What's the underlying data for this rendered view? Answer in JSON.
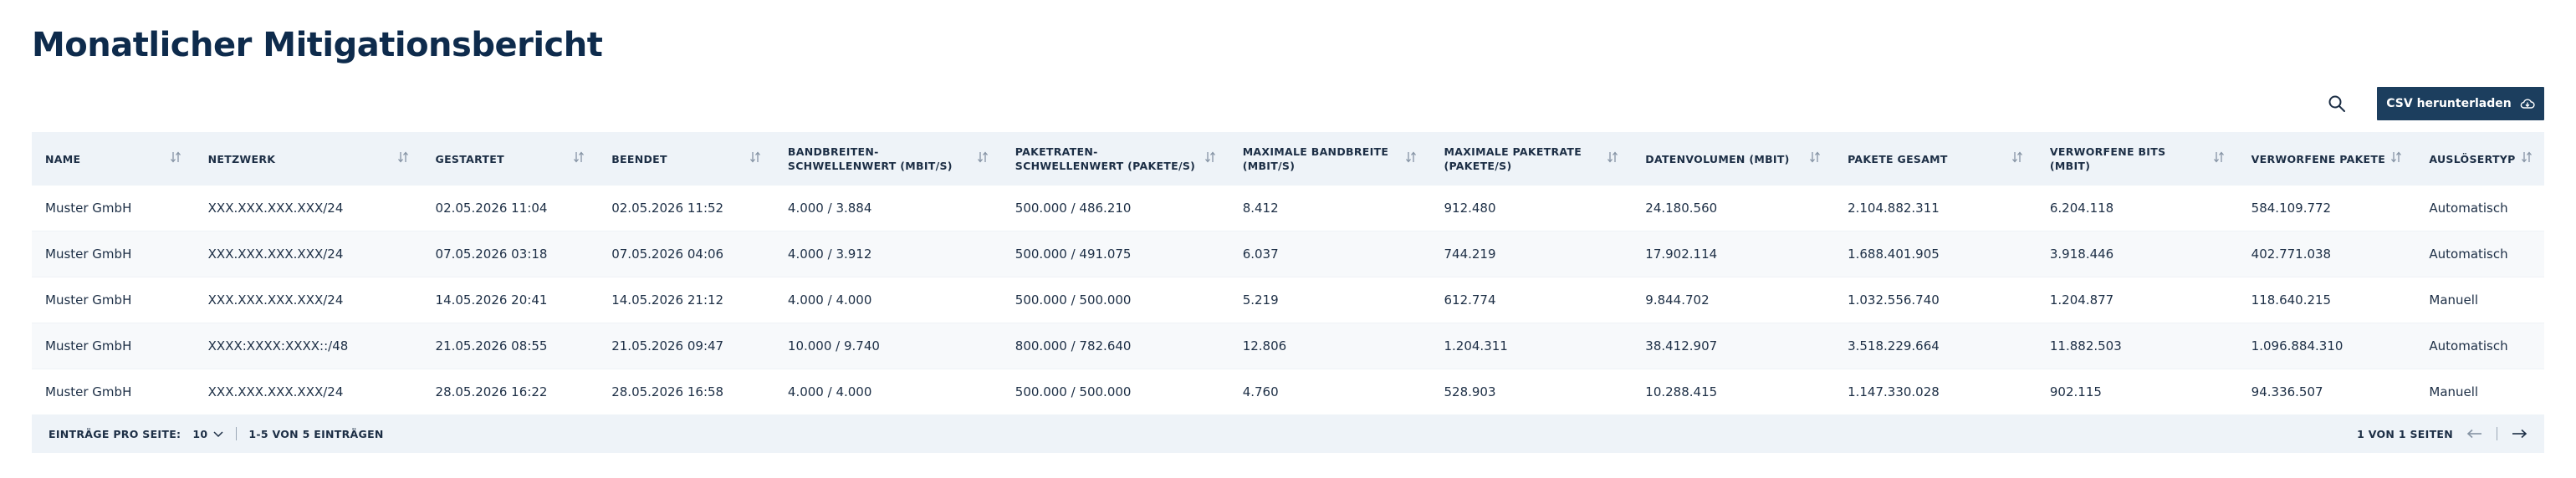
{
  "page": {
    "title": "Monatlicher Mitigationsbericht"
  },
  "toolbar": {
    "csv_label": "CSV herunterladen"
  },
  "table": {
    "columns": [
      "Name",
      "Netzwerk",
      "Gestartet",
      "Beendet",
      "Bandbreiten-Schwellenwert (Mbit/s)",
      "Paketraten-Schwellenwert (Pakete/s)",
      "Maximale Bandbreite (Mbit/s)",
      "Maximale Paketrate (Pakete/s)",
      "Datenvolumen (Mbit)",
      "Pakete gesamt",
      "Verworfene Bits (Mbit)",
      "Verworfene Pakete",
      "Auslösertyp"
    ],
    "rows": [
      [
        "Muster GmbH",
        "XXX.XXX.XXX.XXX/24",
        "02.05.2026 11:04",
        "02.05.2026 11:52",
        "4.000 / 3.884",
        "500.000 / 486.210",
        "8.412",
        "912.480",
        "24.180.560",
        "2.104.882.311",
        "6.204.118",
        "584.109.772",
        "Automatisch"
      ],
      [
        "Muster GmbH",
        "XXX.XXX.XXX.XXX/24",
        "07.05.2026 03:18",
        "07.05.2026 04:06",
        "4.000 / 3.912",
        "500.000 / 491.075",
        "6.037",
        "744.219",
        "17.902.114",
        "1.688.401.905",
        "3.918.446",
        "402.771.038",
        "Automatisch"
      ],
      [
        "Muster GmbH",
        "XXX.XXX.XXX.XXX/24",
        "14.05.2026 20:41",
        "14.05.2026 21:12",
        "4.000 / 4.000",
        "500.000 / 500.000",
        "5.219",
        "612.774",
        "9.844.702",
        "1.032.556.740",
        "1.204.877",
        "118.640.215",
        "Manuell"
      ],
      [
        "Muster GmbH",
        "XXXX:XXXX:XXXX::/48",
        "21.05.2026 08:55",
        "21.05.2026 09:47",
        "10.000 / 9.740",
        "800.000 / 782.640",
        "12.806",
        "1.204.311",
        "38.412.907",
        "3.518.229.664",
        "11.882.503",
        "1.096.884.310",
        "Automatisch"
      ],
      [
        "Muster GmbH",
        "XXX.XXX.XXX.XXX/24",
        "28.05.2026 16:22",
        "28.05.2026 16:58",
        "4.000 / 4.000",
        "500.000 / 500.000",
        "4.760",
        "528.903",
        "10.288.415",
        "1.147.330.028",
        "902.115",
        "94.336.507",
        "Manuell"
      ]
    ]
  },
  "footer": {
    "per_page_label": "Einträge pro Seite:",
    "per_page_value": "10",
    "range_text": "1-5 von 5 Einträgen",
    "page_text": "1 von 1 Seiten"
  },
  "icons": {
    "search": "search-icon",
    "download": "cloud-download-icon",
    "sort": "sort-icon",
    "chevron": "chevron-down-icon",
    "prev": "arrow-left-icon",
    "next": "arrow-right-icon"
  },
  "colors": {
    "title": "#0e2b4c",
    "button_bg": "#1c3e5e",
    "header_bg": "#eef3f8",
    "row_alt_bg": "#f7f9fb"
  }
}
